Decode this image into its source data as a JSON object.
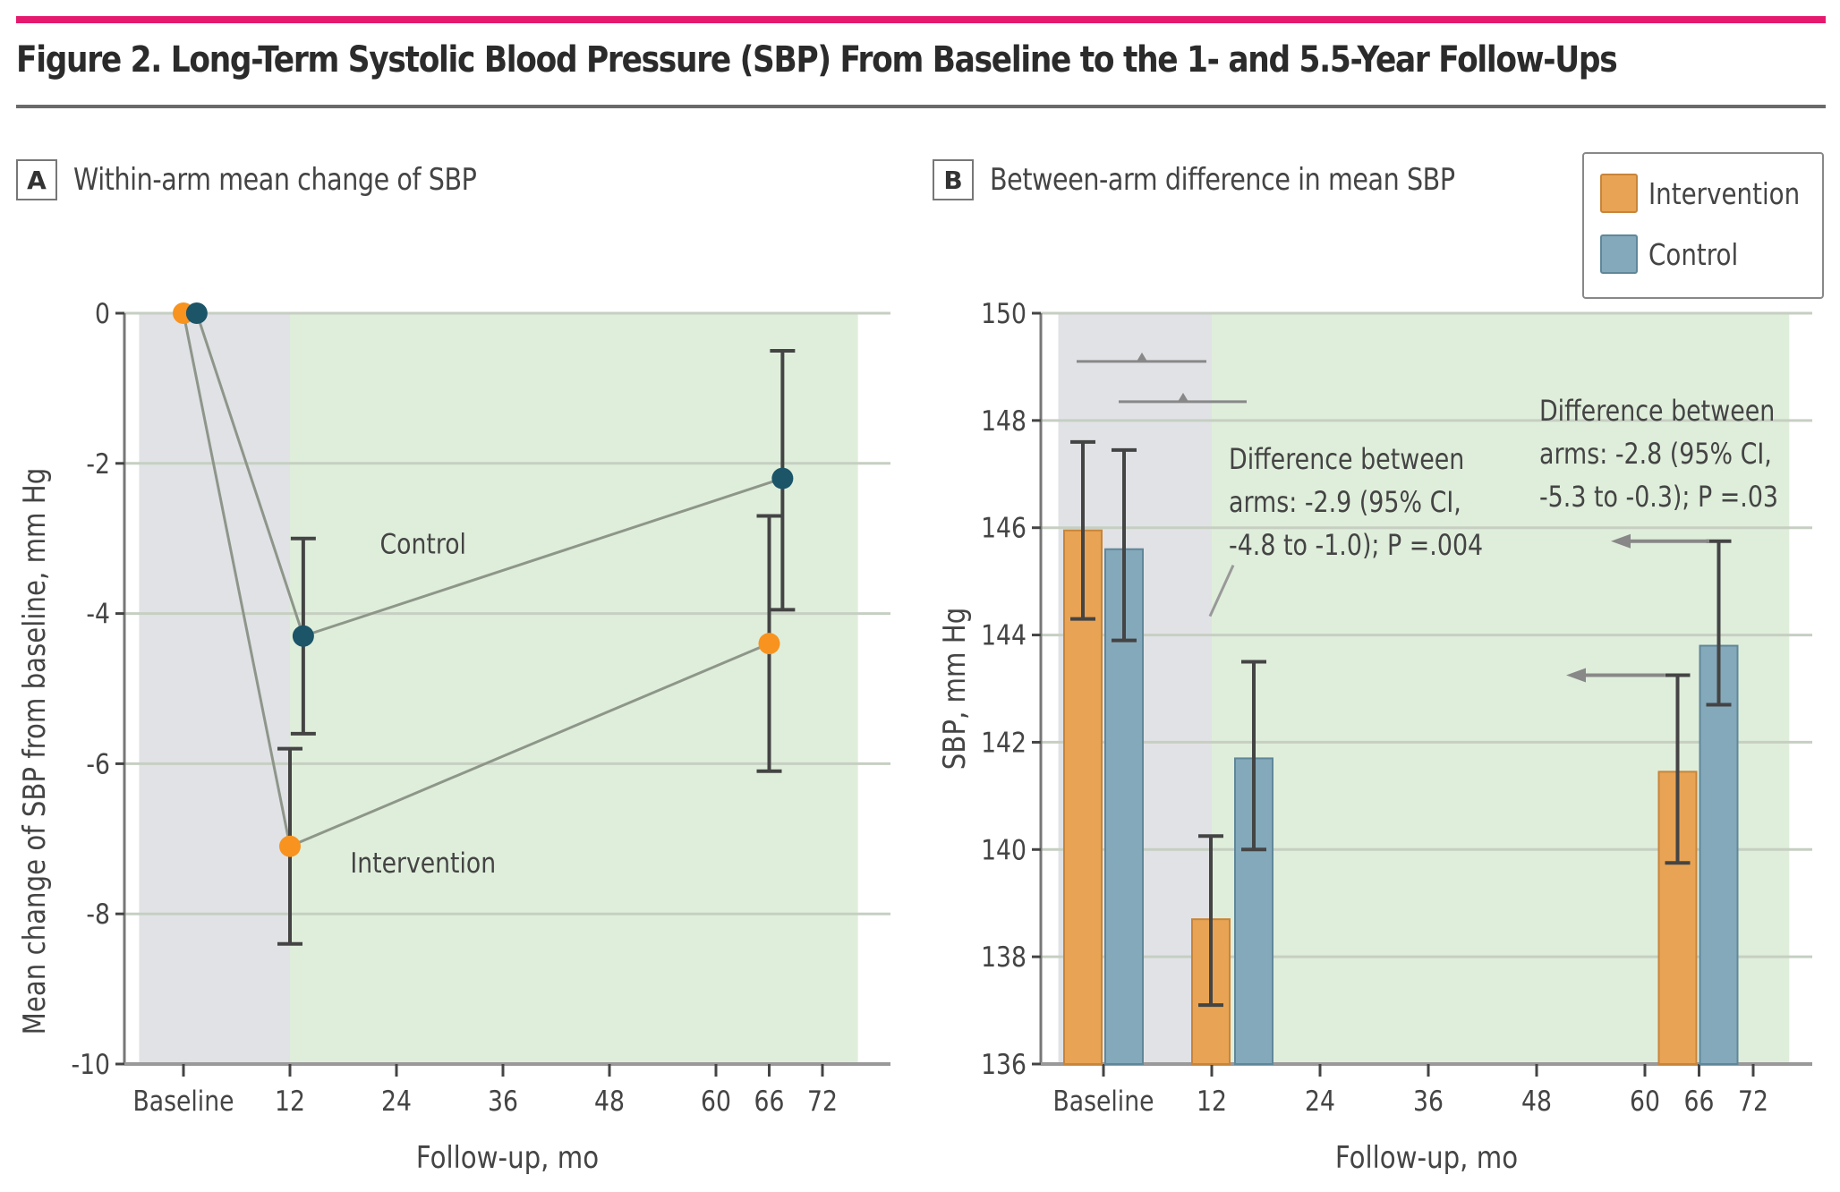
{
  "figure": {
    "title": "Figure 2. Long-Term Systolic Blood Pressure (SBP) From Baseline to the 1- and 5.5-Year Follow-Ups",
    "accent_color": "#e5196e",
    "rule_color": "#6a6a6a"
  },
  "legend": {
    "items": [
      {
        "label": "Intervention",
        "color": "#e8a454"
      },
      {
        "label": "Control",
        "color": "#84a9ba"
      }
    ]
  },
  "chart_data": [
    {
      "panel": "A",
      "type": "line",
      "title": "Within-arm mean change of SBP",
      "xlabel": "Follow-up, mo",
      "ylabel": "Mean change of SBP from baseline, mm Hg",
      "ylim": [
        -10,
        0
      ],
      "yticks": [
        0,
        -2,
        -4,
        -6,
        -8,
        -10
      ],
      "xlim": [
        -5,
        76
      ],
      "xticks": [
        {
          "v": 0,
          "label": "Baseline"
        },
        {
          "v": 12,
          "label": "12"
        },
        {
          "v": 24,
          "label": "24"
        },
        {
          "v": 36,
          "label": "36"
        },
        {
          "v": 48,
          "label": "48"
        },
        {
          "v": 60,
          "label": "60"
        },
        {
          "v": 66,
          "label": "66"
        },
        {
          "v": 72,
          "label": "72"
        }
      ],
      "shaded_regions": [
        {
          "from": -5,
          "to": 12,
          "color": "#e1e2e6"
        },
        {
          "from": 12,
          "to": 76,
          "color": "#dfeedb"
        }
      ],
      "grid": true,
      "series": [
        {
          "name": "Intervention",
          "color": "#f7931e",
          "points": [
            {
              "x": 0,
              "y": 0,
              "ci": null
            },
            {
              "x": 12,
              "y": -7.1,
              "ci": [
                -8.4,
                -5.8
              ]
            },
            {
              "x": 66,
              "y": -4.4,
              "ci": [
                -6.1,
                -2.7
              ]
            }
          ],
          "label": "Intervention"
        },
        {
          "name": "Control",
          "color": "#1c5468",
          "points": [
            {
              "x": 1.5,
              "y": 0,
              "ci": null
            },
            {
              "x": 13.5,
              "y": -4.3,
              "ci": [
                -5.6,
                -3.0
              ]
            },
            {
              "x": 67.5,
              "y": -2.2,
              "ci": [
                -3.95,
                -0.5
              ]
            }
          ],
          "label": "Control"
        }
      ]
    },
    {
      "panel": "B",
      "type": "bar",
      "title": "Between-arm difference in mean SBP",
      "xlabel": "Follow-up, mo",
      "ylabel": "SBP, mm Hg",
      "ylim": [
        136,
        150
      ],
      "yticks": [
        150,
        148,
        146,
        144,
        142,
        140,
        138,
        136
      ],
      "xlim": [
        -5,
        76
      ],
      "xticks": [
        {
          "v": 0,
          "label": "Baseline"
        },
        {
          "v": 12,
          "label": "12"
        },
        {
          "v": 24,
          "label": "24"
        },
        {
          "v": 36,
          "label": "36"
        },
        {
          "v": 48,
          "label": "48"
        },
        {
          "v": 60,
          "label": "60"
        },
        {
          "v": 66,
          "label": "66"
        },
        {
          "v": 72,
          "label": "72"
        }
      ],
      "shaded_regions": [
        {
          "from": -5,
          "to": 12,
          "color": "#e1e2e6"
        },
        {
          "from": 12,
          "to": 76,
          "color": "#dfeedb"
        }
      ],
      "grid": true,
      "groups": [
        {
          "x": 0,
          "intervention": {
            "value": 145.95,
            "ci": [
              144.3,
              147.6
            ]
          },
          "control": {
            "value": 145.6,
            "ci": [
              143.9,
              147.45
            ]
          }
        },
        {
          "x": 12,
          "intervention": {
            "value": 138.7,
            "ci": [
              137.1,
              140.25
            ]
          },
          "control": {
            "value": 141.7,
            "ci": [
              140.0,
              143.5
            ]
          }
        },
        {
          "x": 66,
          "intervention": {
            "value": 141.45,
            "ci": [
              139.75,
              143.25
            ]
          },
          "control": {
            "value": 143.8,
            "ci": [
              142.7,
              145.75
            ]
          }
        }
      ],
      "annotations": [
        {
          "lines": [
            "Difference between",
            "arms: -2.9 (95% CI,",
            "-4.8 to -1.0); P =.004"
          ],
          "timepoint": 12
        },
        {
          "lines": [
            "Difference between",
            "arms: -2.8 (95% CI,",
            "-5.3 to -0.3); P =.03"
          ],
          "timepoint": 66
        }
      ]
    }
  ]
}
